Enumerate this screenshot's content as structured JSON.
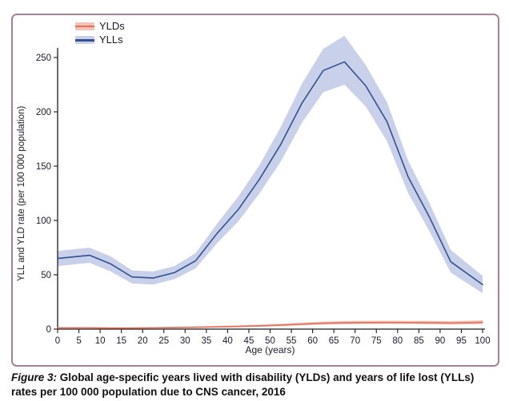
{
  "figure": {
    "caption_label": "Figure 3:",
    "caption_text": " Global age-specific years lived with disability (YLDs) and years of life lost (YLLs) rates per 100 000 population due to CNS cancer, 2016"
  },
  "colors": {
    "panel_border": "#a98093",
    "axis": "#1c1c1c",
    "tick_text": "#1a1a2e"
  },
  "chart_data": {
    "type": "line",
    "title": "",
    "xlabel": "Age (years)",
    "ylabel": "YLL and YLD rate (per 100 000 population)",
    "xlim": [
      0,
      100
    ],
    "ylim": [
      0,
      250
    ],
    "x_ticks": [
      0,
      5,
      10,
      15,
      20,
      25,
      30,
      35,
      40,
      45,
      50,
      55,
      60,
      65,
      70,
      75,
      80,
      85,
      90,
      95,
      100
    ],
    "y_ticks": [
      0,
      50,
      100,
      150,
      200,
      250
    ],
    "grid": false,
    "legend_position": "top-left",
    "x": [
      0,
      7.5,
      12.5,
      17.5,
      22.5,
      27.5,
      32.5,
      37.5,
      42.5,
      47.5,
      52.5,
      57.5,
      62.5,
      67.5,
      72.5,
      77.5,
      82.5,
      87.5,
      92.5,
      100
    ],
    "series": [
      {
        "name": "YLDs",
        "line_color": "#e4705b",
        "band_color": "#f4c3ba",
        "values": [
          1.2,
          1.2,
          1.0,
          1.0,
          1.2,
          1.4,
          1.7,
          2.1,
          2.5,
          3.0,
          3.7,
          4.6,
          5.4,
          5.8,
          6.0,
          6.1,
          6.0,
          5.9,
          5.6,
          6.2
        ],
        "lower": [
          0.7,
          0.7,
          0.6,
          0.6,
          0.7,
          0.9,
          1.1,
          1.4,
          1.7,
          2.1,
          2.7,
          3.4,
          4.1,
          4.5,
          4.7,
          4.8,
          4.7,
          4.5,
          4.2,
          4.6
        ],
        "upper": [
          1.8,
          1.8,
          1.6,
          1.6,
          1.8,
          2.1,
          2.5,
          2.9,
          3.4,
          4.1,
          4.9,
          6.0,
          6.9,
          7.4,
          7.6,
          7.7,
          7.6,
          7.5,
          7.3,
          8.1
        ]
      },
      {
        "name": "YLLs",
        "line_color": "#34508f",
        "band_color": "#c8d1e9",
        "values": [
          65,
          68,
          60,
          48,
          47,
          52,
          63,
          88,
          110,
          138,
          170,
          208,
          238,
          246,
          224,
          191,
          140,
          103,
          62,
          41
        ],
        "lower": [
          58,
          61,
          53,
          42,
          41,
          46,
          56,
          79,
          99,
          125,
          154,
          190,
          218,
          225,
          205,
          173,
          125,
          90,
          52,
          33
        ],
        "upper": [
          72,
          75,
          67,
          54,
          53,
          58,
          70,
          97,
          122,
          151,
          186,
          226,
          258,
          270,
          243,
          209,
          155,
          116,
          73,
          49
        ]
      }
    ]
  }
}
